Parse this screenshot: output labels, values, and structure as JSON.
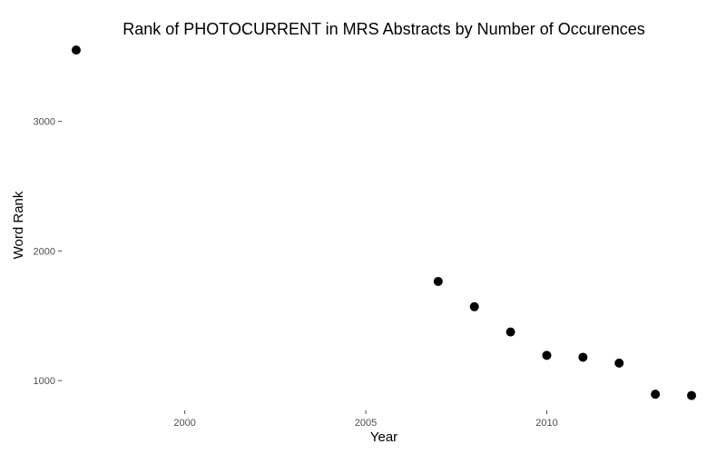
{
  "chart_data": {
    "type": "scatter",
    "title": "Rank of PHOTOCURRENT in MRS Abstracts by Number of Occurences",
    "xlabel": "Year",
    "ylabel": "Word Rank",
    "xlim": [
      1996.6,
      2014.4
    ],
    "ylim": [
      770,
      3600
    ],
    "x_ticks": [
      2000,
      2005,
      2010
    ],
    "y_ticks": [
      1000,
      2000,
      3000
    ],
    "grid": false,
    "legend": "none",
    "point_color": "#000000",
    "series": [
      {
        "x": [
          1997,
          2007,
          2008,
          2009,
          2010,
          2011,
          2012,
          2013,
          2014
        ],
        "y": [
          3550,
          1765,
          1570,
          1375,
          1195,
          1180,
          1135,
          895,
          885
        ]
      }
    ]
  }
}
